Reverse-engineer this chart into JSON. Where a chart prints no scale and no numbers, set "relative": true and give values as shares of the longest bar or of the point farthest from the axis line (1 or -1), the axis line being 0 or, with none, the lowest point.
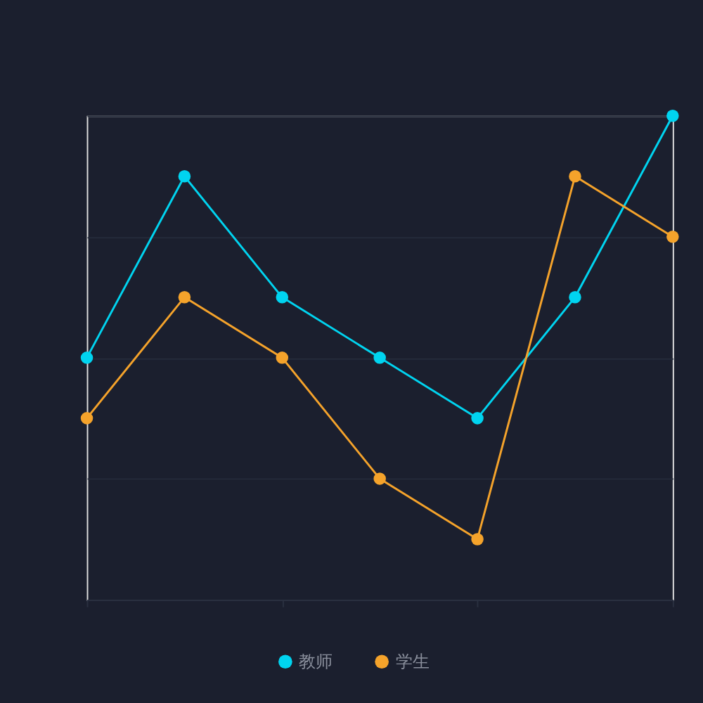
{
  "chart_data": {
    "type": "line",
    "relative": true,
    "categories": [
      null,
      null,
      null,
      null,
      null,
      null,
      null
    ],
    "series": [
      {
        "name": "教师",
        "color": "#00d4f0",
        "values": [
          0.5,
          0.875,
          0.625,
          0.5,
          0.375,
          0.625,
          1
        ]
      },
      {
        "name": "学生",
        "color": "#f5a32b",
        "values": [
          0.375,
          0.625,
          0.5,
          0.25,
          0.125,
          0.875,
          0.75
        ]
      }
    ],
    "grid": "y",
    "legend": "bottom",
    "marker": "circle",
    "line_style": "solid"
  }
}
